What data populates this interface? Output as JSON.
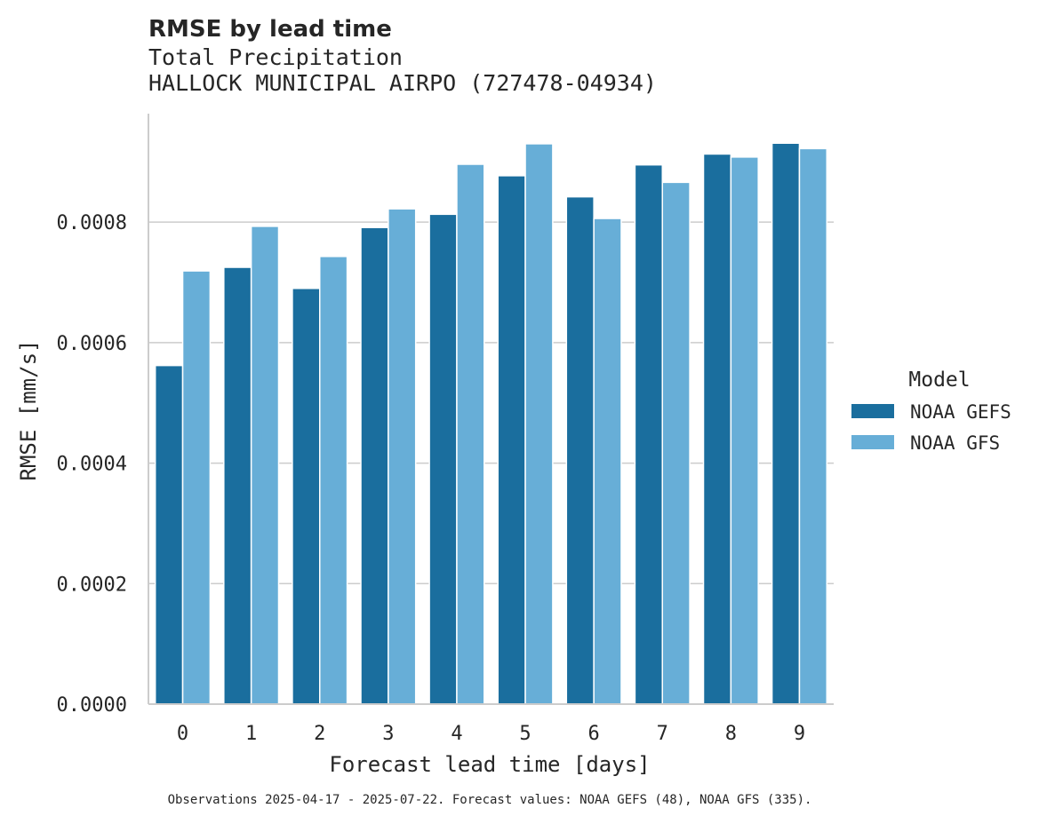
{
  "chart_data": {
    "type": "bar",
    "title": "RMSE by lead time",
    "subtitle_lines": [
      "Total Precipitation",
      "HALLOCK MUNICIPAL AIRPO (727478-04934)"
    ],
    "xlabel": "Forecast lead time [days]",
    "ylabel": "RMSE [mm/s]",
    "categories": [
      "0",
      "1",
      "2",
      "3",
      "4",
      "5",
      "6",
      "7",
      "8",
      "9"
    ],
    "series": [
      {
        "name": "NOAA GEFS",
        "color": "#1a6e9e",
        "values": [
          0.000562,
          0.000725,
          0.00069,
          0.000791,
          0.000813,
          0.000877,
          0.000842,
          0.000895,
          0.000913,
          0.000931
        ]
      },
      {
        "name": "NOAA GFS",
        "color": "#67aed7",
        "values": [
          0.000719,
          0.000793,
          0.000743,
          0.000822,
          0.000896,
          0.00093,
          0.000806,
          0.000866,
          0.000908,
          0.000922
        ]
      }
    ],
    "ylim": [
      0,
      0.00098
    ],
    "yticks": [
      "0.0000",
      "0.0002",
      "0.0004",
      "0.0006",
      "0.0008"
    ],
    "ytick_values": [
      0,
      0.0002,
      0.0004,
      0.0006,
      0.0008
    ],
    "grid": "horizontal",
    "legend": {
      "title": "Model",
      "placement": "right"
    },
    "footnote": "Observations 2025-04-17 - 2025-07-22. Forecast values: NOAA GEFS (48), NOAA GFS (335)."
  }
}
